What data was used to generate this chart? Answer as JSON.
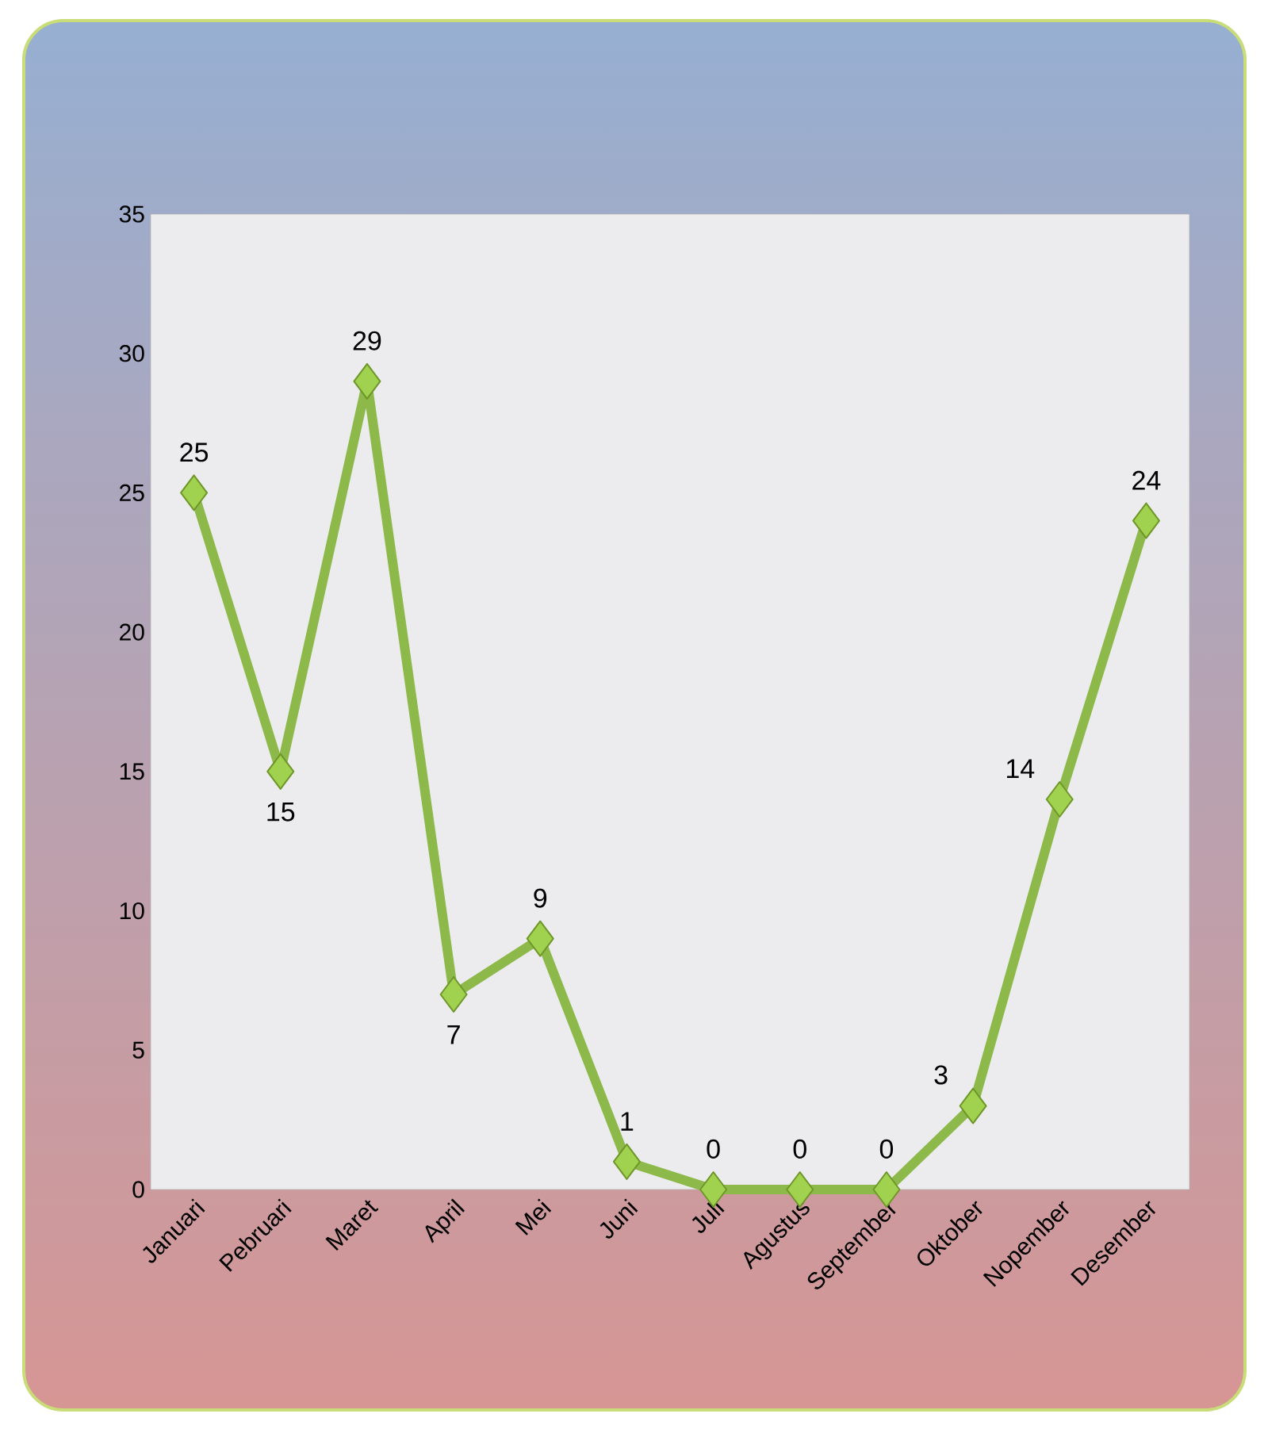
{
  "chart_data": {
    "type": "line",
    "categories": [
      "Januari",
      "Pebruari",
      "Maret",
      "April",
      "Mei",
      "Juni",
      "Juli",
      "Agustus",
      "September",
      "Oktober",
      "Nopember",
      "Desember"
    ],
    "values": [
      25,
      15,
      29,
      7,
      9,
      1,
      0,
      0,
      0,
      3,
      14,
      24
    ],
    "color": "#8db94a",
    "ylim": [
      0,
      35
    ],
    "yticks": [
      0,
      5,
      10,
      15,
      20,
      25,
      30,
      35
    ],
    "marker": "diamond",
    "data_labels": true,
    "grid": false
  }
}
